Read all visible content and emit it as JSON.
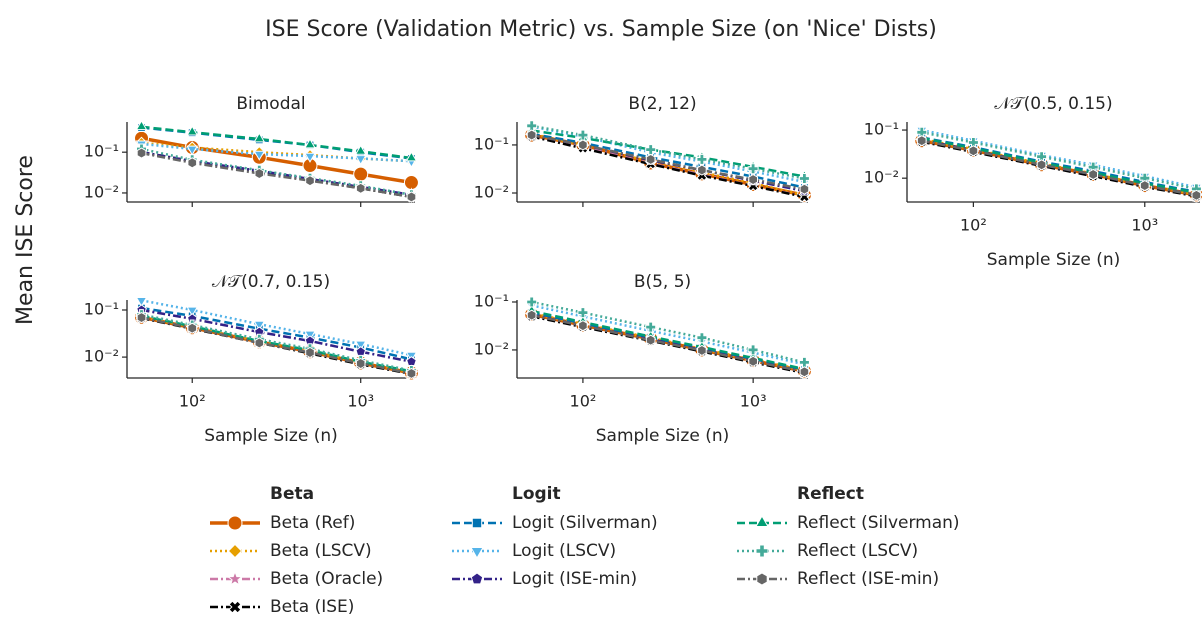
{
  "figure": {
    "title": "ISE Score (Validation Metric) vs. Sample Size (on 'Nice' Dists)",
    "ylabel": "Mean ISE Score"
  },
  "legend": {
    "titles": [
      "Beta",
      "Logit",
      "Reflect"
    ]
  },
  "chart_data": [
    {
      "type": "line",
      "title": "Bimodal",
      "x": [
        50,
        100,
        250,
        500,
        1000,
        2000
      ],
      "xlog": true,
      "ylog": true,
      "xlim": [
        41,
        2100
      ],
      "ylim": [
        0.006,
        0.55
      ],
      "xticks": [
        100,
        1000
      ],
      "yticks": [
        {
          "value": 0.01,
          "label": "10⁻²"
        },
        {
          "value": 0.1,
          "label": "10⁻¹"
        }
      ],
      "series": [
        {
          "name": "Beta (Ref)",
          "color": "#d55e00",
          "linestyle": "solid",
          "marker": "circle",
          "values": [
            0.22,
            0.13,
            0.075,
            0.047,
            0.029,
            0.018
          ]
        },
        {
          "name": "Beta (LSCV)",
          "color": "#e69f00",
          "linestyle": "dotted",
          "marker": "diamond",
          "values": [
            0.17,
            0.13,
            0.1,
            0.085,
            0.07,
            0.06
          ]
        },
        {
          "name": "Beta (Oracle)",
          "color": "#cc79a7",
          "linestyle": "dashdot",
          "marker": "star",
          "values": [
            0.1,
            0.06,
            0.034,
            0.022,
            0.014,
            0.009
          ]
        },
        {
          "name": "Beta (ISE)",
          "color": "#000000",
          "linestyle": "dashdot",
          "marker": "x",
          "values": [
            0.1,
            0.06,
            0.033,
            0.021,
            0.013,
            0.008
          ]
        },
        {
          "name": "Logit (Silverman)",
          "color": "#0072b2",
          "linestyle": "dashed",
          "marker": "square",
          "values": [
            0.4,
            0.3,
            0.2,
            0.15,
            0.1,
            0.07
          ]
        },
        {
          "name": "Logit (LSCV)",
          "color": "#56b4e9",
          "linestyle": "dotted",
          "marker": "triangle-down",
          "values": [
            0.16,
            0.12,
            0.09,
            0.08,
            0.07,
            0.06
          ]
        },
        {
          "name": "Logit (ISE-min)",
          "color": "#332288",
          "linestyle": "dashdot",
          "marker": "pentagon",
          "values": [
            0.1,
            0.06,
            0.035,
            0.022,
            0.014,
            0.009
          ]
        },
        {
          "name": "Reflect (Silverman)",
          "color": "#009e73",
          "linestyle": "dashed",
          "marker": "triangle-up",
          "values": [
            0.42,
            0.31,
            0.21,
            0.15,
            0.105,
            0.072
          ]
        },
        {
          "name": "Reflect (LSCV)",
          "color": "#44aa99",
          "linestyle": "dotted",
          "marker": "plus",
          "values": [
            0.12,
            0.065,
            0.036,
            0.023,
            0.015,
            0.009
          ]
        },
        {
          "name": "Reflect (ISE-min)",
          "color": "#666666",
          "linestyle": "dashdot",
          "marker": "hexagon",
          "values": [
            0.095,
            0.055,
            0.03,
            0.02,
            0.013,
            0.008
          ]
        }
      ]
    },
    {
      "type": "line",
      "title": "B(2, 12)",
      "x": [
        50,
        100,
        250,
        500,
        1000,
        2000
      ],
      "xlog": true,
      "ylog": true,
      "xlim": [
        41,
        2100
      ],
      "ylim": [
        0.0065,
        0.3
      ],
      "xticks": [
        100,
        1000
      ],
      "yticks": [
        {
          "value": 0.01,
          "label": "10⁻²"
        },
        {
          "value": 0.1,
          "label": "10⁻¹"
        }
      ],
      "series": [
        {
          "name": "Beta (Ref)",
          "color": "#d55e00",
          "linestyle": "solid",
          "marker": "circle",
          "values": [
            0.16,
            0.1,
            0.042,
            0.025,
            0.015,
            0.009
          ]
        },
        {
          "name": "Beta (LSCV)",
          "color": "#e69f00",
          "linestyle": "dotted",
          "marker": "diamond",
          "values": [
            0.17,
            0.1,
            0.045,
            0.027,
            0.016,
            0.009
          ]
        },
        {
          "name": "Beta (Oracle)",
          "color": "#cc79a7",
          "linestyle": "dashdot",
          "marker": "star",
          "values": [
            0.15,
            0.09,
            0.041,
            0.024,
            0.014,
            0.0085
          ]
        },
        {
          "name": "Beta (ISE)",
          "color": "#000000",
          "linestyle": "dashdot",
          "marker": "x",
          "values": [
            0.15,
            0.085,
            0.04,
            0.023,
            0.014,
            0.0083
          ]
        },
        {
          "name": "Logit (Silverman)",
          "color": "#0072b2",
          "linestyle": "dashed",
          "marker": "square",
          "values": [
            0.17,
            0.11,
            0.055,
            0.035,
            0.022,
            0.013
          ]
        },
        {
          "name": "Logit (LSCV)",
          "color": "#56b4e9",
          "linestyle": "dotted",
          "marker": "triangle-down",
          "values": [
            0.24,
            0.15,
            0.07,
            0.045,
            0.028,
            0.017
          ]
        },
        {
          "name": "Logit (ISE-min)",
          "color": "#332288",
          "linestyle": "dashdot",
          "marker": "pentagon",
          "values": [
            0.16,
            0.1,
            0.048,
            0.03,
            0.018,
            0.011
          ]
        },
        {
          "name": "Reflect (Silverman)",
          "color": "#009e73",
          "linestyle": "dashed",
          "marker": "triangle-up",
          "values": [
            0.2,
            0.14,
            0.08,
            0.055,
            0.035,
            0.022
          ]
        },
        {
          "name": "Reflect (LSCV)",
          "color": "#44aa99",
          "linestyle": "dotted",
          "marker": "plus",
          "values": [
            0.25,
            0.16,
            0.08,
            0.05,
            0.032,
            0.02
          ]
        },
        {
          "name": "Reflect (ISE-min)",
          "color": "#666666",
          "linestyle": "dashdot",
          "marker": "hexagon",
          "values": [
            0.16,
            0.1,
            0.05,
            0.03,
            0.019,
            0.012
          ]
        }
      ]
    },
    {
      "type": "line",
      "title": "𝒩𝒯(0.5, 0.15)",
      "xlabel": "Sample Size (n)",
      "x": [
        50,
        100,
        250,
        500,
        1000,
        2000
      ],
      "xlog": true,
      "ylog": true,
      "xlim": [
        41,
        2100
      ],
      "ylim": [
        0.0032,
        0.147
      ],
      "xticks": [
        {
          "value": 100,
          "label": "10²"
        },
        {
          "value": 1000,
          "label": "10³"
        }
      ],
      "yticks": [
        {
          "value": 0.01,
          "label": "10⁻²"
        },
        {
          "value": 0.1,
          "label": "10⁻¹"
        }
      ],
      "series": [
        {
          "name": "Beta (Ref)",
          "color": "#d55e00",
          "linestyle": "solid",
          "marker": "circle",
          "values": [
            0.06,
            0.038,
            0.019,
            0.012,
            0.007,
            0.0045
          ]
        },
        {
          "name": "Beta (LSCV)",
          "color": "#e69f00",
          "linestyle": "dotted",
          "marker": "diamond",
          "values": [
            0.065,
            0.04,
            0.02,
            0.0125,
            0.0072,
            0.0046
          ]
        },
        {
          "name": "Beta (Oracle)",
          "color": "#cc79a7",
          "linestyle": "dashdot",
          "marker": "star",
          "values": [
            0.058,
            0.036,
            0.018,
            0.0115,
            0.0068,
            0.0043
          ]
        },
        {
          "name": "Beta (ISE)",
          "color": "#000000",
          "linestyle": "dashdot",
          "marker": "x",
          "values": [
            0.057,
            0.035,
            0.018,
            0.011,
            0.0066,
            0.0042
          ]
        },
        {
          "name": "Logit (Silverman)",
          "color": "#0072b2",
          "linestyle": "dashed",
          "marker": "square",
          "values": [
            0.07,
            0.044,
            0.022,
            0.014,
            0.0083,
            0.0052
          ]
        },
        {
          "name": "Logit (LSCV)",
          "color": "#56b4e9",
          "linestyle": "dotted",
          "marker": "triangle-down",
          "values": [
            0.1,
            0.06,
            0.03,
            0.019,
            0.011,
            0.0065
          ]
        },
        {
          "name": "Logit (ISE-min)",
          "color": "#332288",
          "linestyle": "dashdot",
          "marker": "pentagon",
          "values": [
            0.062,
            0.038,
            0.019,
            0.012,
            0.007,
            0.0045
          ]
        },
        {
          "name": "Reflect (Silverman)",
          "color": "#009e73",
          "linestyle": "dashed",
          "marker": "triangle-up",
          "values": [
            0.068,
            0.042,
            0.021,
            0.013,
            0.0078,
            0.005
          ]
        },
        {
          "name": "Reflect (LSCV)",
          "color": "#44aa99",
          "linestyle": "dotted",
          "marker": "plus",
          "values": [
            0.09,
            0.055,
            0.028,
            0.017,
            0.01,
            0.006
          ]
        },
        {
          "name": "Reflect (ISE-min)",
          "color": "#666666",
          "linestyle": "dashdot",
          "marker": "hexagon",
          "values": [
            0.06,
            0.037,
            0.019,
            0.012,
            0.007,
            0.0044
          ]
        }
      ]
    },
    {
      "type": "line",
      "title": "𝒩𝒯(0.7, 0.15)",
      "xlabel": "Sample Size (n)",
      "x": [
        50,
        100,
        250,
        500,
        1000,
        2000
      ],
      "xlog": true,
      "ylog": true,
      "xlim": [
        41,
        2100
      ],
      "ylim": [
        0.0036,
        0.163
      ],
      "xticks": [
        {
          "value": 100,
          "label": "10²"
        },
        {
          "value": 1000,
          "label": "10³"
        }
      ],
      "yticks": [
        {
          "value": 0.01,
          "label": "10⁻²"
        },
        {
          "value": 0.1,
          "label": "10⁻¹"
        }
      ],
      "series": [
        {
          "name": "Beta (Ref)",
          "color": "#d55e00",
          "linestyle": "solid",
          "marker": "circle",
          "values": [
            0.07,
            0.042,
            0.021,
            0.013,
            0.0075,
            0.0046
          ]
        },
        {
          "name": "Beta (LSCV)",
          "color": "#e69f00",
          "linestyle": "dotted",
          "marker": "diamond",
          "values": [
            0.072,
            0.044,
            0.022,
            0.0135,
            0.0078,
            0.0048
          ]
        },
        {
          "name": "Beta (Oracle)",
          "color": "#cc79a7",
          "linestyle": "dashdot",
          "marker": "star",
          "values": [
            0.068,
            0.041,
            0.02,
            0.0125,
            0.0072,
            0.0045
          ]
        },
        {
          "name": "Beta (ISE)",
          "color": "#000000",
          "linestyle": "dashdot",
          "marker": "x",
          "values": [
            0.067,
            0.04,
            0.02,
            0.012,
            0.007,
            0.0044
          ]
        },
        {
          "name": "Logit (Silverman)",
          "color": "#0072b2",
          "linestyle": "dashed",
          "marker": "square",
          "values": [
            0.11,
            0.075,
            0.04,
            0.026,
            0.016,
            0.009
          ]
        },
        {
          "name": "Logit (LSCV)",
          "color": "#56b4e9",
          "linestyle": "dotted",
          "marker": "triangle-down",
          "values": [
            0.16,
            0.1,
            0.05,
            0.031,
            0.019,
            0.011
          ]
        },
        {
          "name": "Logit (ISE-min)",
          "color": "#332288",
          "linestyle": "dashdot",
          "marker": "pentagon",
          "values": [
            0.1,
            0.065,
            0.034,
            0.022,
            0.013,
            0.008
          ]
        },
        {
          "name": "Reflect (Silverman)",
          "color": "#009e73",
          "linestyle": "dashed",
          "marker": "triangle-up",
          "values": [
            0.075,
            0.045,
            0.022,
            0.014,
            0.008,
            0.005
          ]
        },
        {
          "name": "Reflect (LSCV)",
          "color": "#44aa99",
          "linestyle": "dotted",
          "marker": "plus",
          "values": [
            0.08,
            0.048,
            0.024,
            0.015,
            0.0085,
            0.0052
          ]
        },
        {
          "name": "Reflect (ISE-min)",
          "color": "#666666",
          "linestyle": "dashdot",
          "marker": "hexagon",
          "values": [
            0.069,
            0.041,
            0.02,
            0.0125,
            0.0073,
            0.0045
          ]
        }
      ]
    },
    {
      "type": "line",
      "title": "B(5, 5)",
      "xlabel": "Sample Size (n)",
      "x": [
        50,
        100,
        250,
        500,
        1000,
        2000
      ],
      "xlog": true,
      "ylog": true,
      "xlim": [
        41,
        2100
      ],
      "ylim": [
        0.0026,
        0.11
      ],
      "xticks": [
        {
          "value": 100,
          "label": "10²"
        },
        {
          "value": 1000,
          "label": "10³"
        }
      ],
      "yticks": [
        {
          "value": 0.01,
          "label": "10⁻²"
        },
        {
          "value": 0.1,
          "label": "10⁻¹"
        }
      ],
      "series": [
        {
          "name": "Beta (Ref)",
          "color": "#d55e00",
          "linestyle": "solid",
          "marker": "circle",
          "values": [
            0.055,
            0.033,
            0.017,
            0.01,
            0.006,
            0.0036
          ]
        },
        {
          "name": "Beta (LSCV)",
          "color": "#e69f00",
          "linestyle": "dotted",
          "marker": "diamond",
          "values": [
            0.058,
            0.035,
            0.018,
            0.0105,
            0.0063,
            0.0038
          ]
        },
        {
          "name": "Beta (Oracle)",
          "color": "#cc79a7",
          "linestyle": "dashdot",
          "marker": "star",
          "values": [
            0.052,
            0.031,
            0.016,
            0.0095,
            0.0057,
            0.0034
          ]
        },
        {
          "name": "Beta (ISE)",
          "color": "#000000",
          "linestyle": "dashdot",
          "marker": "x",
          "values": [
            0.05,
            0.03,
            0.0155,
            0.0093,
            0.0055,
            0.0033
          ]
        },
        {
          "name": "Logit (Silverman)",
          "color": "#0072b2",
          "linestyle": "dashed",
          "marker": "square",
          "values": [
            0.06,
            0.036,
            0.018,
            0.011,
            0.0065,
            0.0039
          ]
        },
        {
          "name": "Logit (LSCV)",
          "color": "#56b4e9",
          "linestyle": "dotted",
          "marker": "triangle-down",
          "values": [
            0.085,
            0.05,
            0.025,
            0.015,
            0.0088,
            0.005
          ]
        },
        {
          "name": "Logit (ISE-min)",
          "color": "#332288",
          "linestyle": "dashdot",
          "marker": "pentagon",
          "values": [
            0.054,
            0.032,
            0.0165,
            0.01,
            0.0059,
            0.0035
          ]
        },
        {
          "name": "Reflect (Silverman)",
          "color": "#009e73",
          "linestyle": "dashed",
          "marker": "triangle-up",
          "values": [
            0.065,
            0.038,
            0.019,
            0.0115,
            0.0068,
            0.004
          ]
        },
        {
          "name": "Reflect (LSCV)",
          "color": "#44aa99",
          "linestyle": "dotted",
          "marker": "plus",
          "values": [
            0.1,
            0.06,
            0.03,
            0.018,
            0.01,
            0.0055
          ]
        },
        {
          "name": "Reflect (ISE-min)",
          "color": "#666666",
          "linestyle": "dashdot",
          "marker": "hexagon",
          "values": [
            0.053,
            0.032,
            0.016,
            0.0098,
            0.0058,
            0.0035
          ]
        }
      ]
    }
  ]
}
